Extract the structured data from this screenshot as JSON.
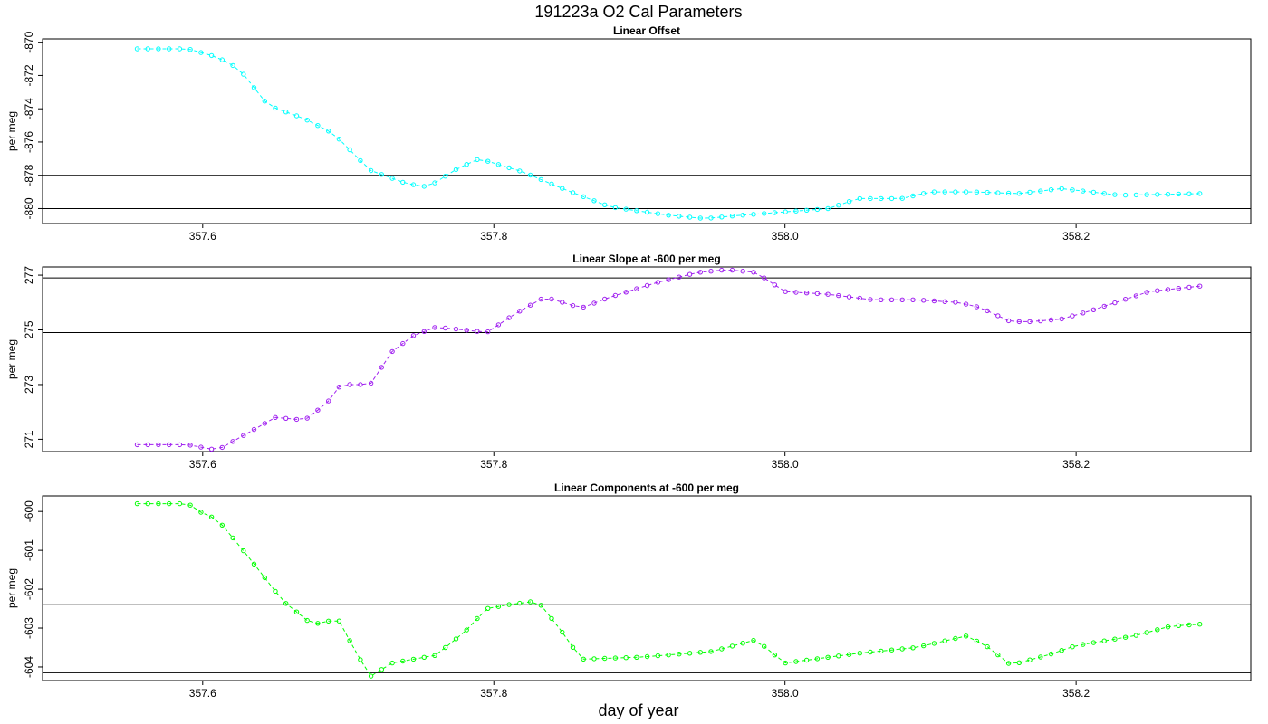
{
  "title": "191223a   O2 Cal Parameters",
  "xlabel": "day of year",
  "chart_data": [
    {
      "type": "line",
      "title": "Linear Offset",
      "ylabel": "per meg",
      "color": "#00ffff",
      "xlim": [
        357.49,
        358.32
      ],
      "ylim": [
        -880.9,
        -869.8
      ],
      "xticks": [
        357.6,
        357.8,
        358.0,
        358.2
      ],
      "xtick_labels": [
        "357.6",
        "357.8",
        "358.0",
        "358.2"
      ],
      "yticks": [
        -880,
        -878,
        -876,
        -874,
        -872,
        -870
      ],
      "ytick_labels": [
        "-880",
        "-878",
        "-876",
        "-874",
        "-872",
        "-870"
      ],
      "hlines": [
        -878,
        -880
      ],
      "anchors": [
        [
          357.555,
          -870.4
        ],
        [
          357.59,
          -870.4
        ],
        [
          357.61,
          -870.9
        ],
        [
          357.625,
          -871.6
        ],
        [
          357.645,
          -873.8
        ],
        [
          357.67,
          -874.6
        ],
        [
          357.69,
          -875.5
        ],
        [
          357.715,
          -877.7
        ],
        [
          357.74,
          -878.5
        ],
        [
          357.755,
          -878.7
        ],
        [
          357.775,
          -877.6
        ],
        [
          357.79,
          -877.0
        ],
        [
          357.82,
          -877.8
        ],
        [
          357.85,
          -878.9
        ],
        [
          357.88,
          -879.9
        ],
        [
          357.92,
          -880.4
        ],
        [
          357.945,
          -880.6
        ],
        [
          357.97,
          -880.4
        ],
        [
          358.0,
          -880.2
        ],
        [
          358.03,
          -880.0
        ],
        [
          358.05,
          -879.4
        ],
        [
          358.08,
          -879.4
        ],
        [
          358.1,
          -879.0
        ],
        [
          358.13,
          -879.0
        ],
        [
          358.16,
          -879.1
        ],
        [
          358.19,
          -878.8
        ],
        [
          358.23,
          -879.2
        ],
        [
          358.285,
          -879.1
        ]
      ]
    },
    {
      "type": "line",
      "title": "Linear Slope at -600 per meg",
      "ylabel": "per meg",
      "color": "#a020f0",
      "xlim": [
        357.49,
        358.32
      ],
      "ylim": [
        270.55,
        277.3
      ],
      "xticks": [
        357.6,
        357.8,
        358.0,
        358.2
      ],
      "xtick_labels": [
        "357.6",
        "357.8",
        "358.0",
        "358.2"
      ],
      "yticks": [
        271,
        273,
        275,
        277
      ],
      "ytick_labels": [
        "271",
        "273",
        "275",
        "277"
      ],
      "hlines": [
        276.9,
        274.9
      ],
      "anchors": [
        [
          357.555,
          270.8
        ],
        [
          357.59,
          270.8
        ],
        [
          357.6,
          270.7
        ],
        [
          357.61,
          270.6
        ],
        [
          357.63,
          271.2
        ],
        [
          357.65,
          271.8
        ],
        [
          357.67,
          271.7
        ],
        [
          357.685,
          272.3
        ],
        [
          357.695,
          273.0
        ],
        [
          357.715,
          273.0
        ],
        [
          357.73,
          274.2
        ],
        [
          357.745,
          274.8
        ],
        [
          357.76,
          275.1
        ],
        [
          357.78,
          275.0
        ],
        [
          357.795,
          274.9
        ],
        [
          357.815,
          275.6
        ],
        [
          357.835,
          276.2
        ],
        [
          357.86,
          275.8
        ],
        [
          357.88,
          276.2
        ],
        [
          357.91,
          276.7
        ],
        [
          357.94,
          277.1
        ],
        [
          357.96,
          277.2
        ],
        [
          357.98,
          277.1
        ],
        [
          358.0,
          276.4
        ],
        [
          358.03,
          276.3
        ],
        [
          358.06,
          276.1
        ],
        [
          358.09,
          276.1
        ],
        [
          358.12,
          276.0
        ],
        [
          358.135,
          275.8
        ],
        [
          358.155,
          275.3
        ],
        [
          358.17,
          275.3
        ],
        [
          358.19,
          275.4
        ],
        [
          358.21,
          275.7
        ],
        [
          358.25,
          276.4
        ],
        [
          358.285,
          276.6
        ]
      ]
    },
    {
      "type": "line",
      "title": "Linear Components at -600 per meg",
      "ylabel": "per meg",
      "color": "#00ff00",
      "xlim": [
        357.49,
        358.32
      ],
      "ylim": [
        -604.35,
        -599.6
      ],
      "xticks": [
        357.6,
        357.8,
        358.0,
        358.2
      ],
      "xtick_labels": [
        "357.6",
        "357.8",
        "358.0",
        "358.2"
      ],
      "yticks": [
        -604,
        -603,
        -602,
        -601,
        -600
      ],
      "ytick_labels": [
        "-604",
        "-603",
        "-602",
        "-601",
        "-600"
      ],
      "hlines": [
        -602.4,
        -604.15
      ],
      "anchors": [
        [
          357.555,
          -599.8
        ],
        [
          357.59,
          -599.8
        ],
        [
          357.6,
          -600.05
        ],
        [
          357.61,
          -600.2
        ],
        [
          357.63,
          -601.1
        ],
        [
          357.655,
          -602.3
        ],
        [
          357.675,
          -602.9
        ],
        [
          357.685,
          -602.85
        ],
        [
          357.692,
          -602.7
        ],
        [
          357.705,
          -603.6
        ],
        [
          357.715,
          -604.25
        ],
        [
          357.73,
          -603.9
        ],
        [
          357.745,
          -603.8
        ],
        [
          357.76,
          -603.7
        ],
        [
          357.78,
          -603.1
        ],
        [
          357.795,
          -602.5
        ],
        [
          357.81,
          -602.4
        ],
        [
          357.83,
          -602.3
        ],
        [
          357.845,
          -603.0
        ],
        [
          357.86,
          -603.8
        ],
        [
          357.9,
          -603.75
        ],
        [
          357.95,
          -603.6
        ],
        [
          357.98,
          -603.3
        ],
        [
          358.0,
          -603.9
        ],
        [
          358.05,
          -603.65
        ],
        [
          358.09,
          -603.5
        ],
        [
          358.125,
          -603.2
        ],
        [
          358.14,
          -603.5
        ],
        [
          358.155,
          -603.95
        ],
        [
          358.18,
          -603.7
        ],
        [
          358.2,
          -603.45
        ],
        [
          358.24,
          -603.2
        ],
        [
          358.265,
          -602.95
        ],
        [
          358.285,
          -602.9
        ]
      ]
    }
  ]
}
